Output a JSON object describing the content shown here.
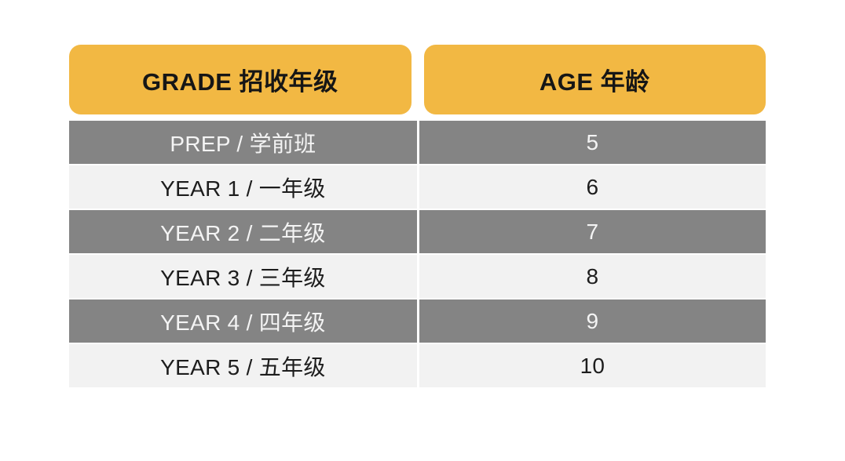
{
  "colors": {
    "header_bg": "#F2B843",
    "header_text": "#161616",
    "row_dark_bg": "#848484",
    "row_dark_text": "#F4F4F4",
    "row_light_bg": "#F2F2F2",
    "row_light_text": "#1D1D1D",
    "page_bg": "#FFFFFF"
  },
  "table": {
    "columns": [
      {
        "label": "GRADE 招收年级"
      },
      {
        "label": "AGE 年龄"
      }
    ],
    "rows": [
      {
        "grade": "PREP / 学前班",
        "age": "5"
      },
      {
        "grade": "YEAR 1 / 一年级",
        "age": "6"
      },
      {
        "grade": "YEAR 2 / 二年级",
        "age": "7"
      },
      {
        "grade": "YEAR 3 / 三年级",
        "age": "8"
      },
      {
        "grade": "YEAR 4 / 四年级",
        "age": "9"
      },
      {
        "grade": "YEAR 5 / 五年级",
        "age": "10"
      }
    ]
  }
}
